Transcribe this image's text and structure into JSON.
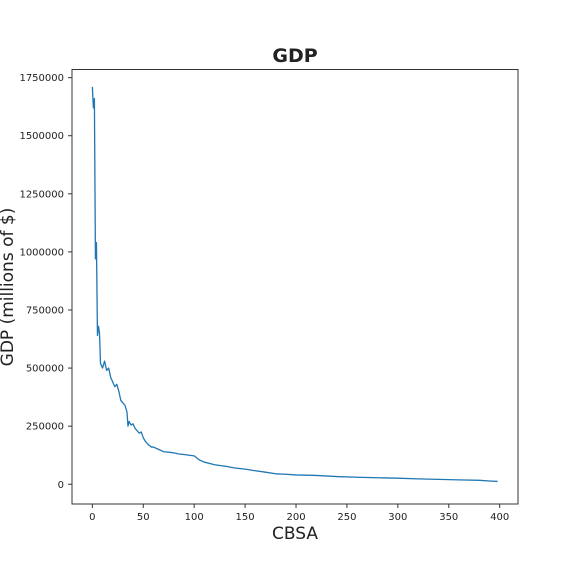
{
  "chart_data": {
    "type": "line",
    "title": "GDP",
    "xlabel": "CBSA",
    "ylabel": "GDP (millions of $)",
    "xlim": [
      -20,
      418
    ],
    "ylim": [
      -85000,
      1785000
    ],
    "xticks": [
      0,
      50,
      100,
      150,
      200,
      250,
      300,
      350,
      400
    ],
    "xtick_labels": [
      "0",
      "50",
      "100",
      "150",
      "200",
      "250",
      "300",
      "350",
      "400"
    ],
    "yticks": [
      0,
      250000,
      500000,
      750000,
      1000000,
      1250000,
      1500000,
      1750000
    ],
    "ytick_labels": [
      "0",
      "250000",
      "500000",
      "750000",
      "1000000",
      "1250000",
      "1500000",
      "1750000"
    ],
    "grid": false,
    "legend": "none",
    "series": [
      {
        "color": "#1f77b4",
        "x": [
          0,
          1,
          2,
          3,
          4,
          5,
          6,
          7,
          8,
          10,
          12,
          14,
          16,
          18,
          20,
          22,
          24,
          26,
          28,
          30,
          32,
          34,
          35,
          36,
          38,
          40,
          42,
          44,
          46,
          48,
          50,
          52,
          55,
          58,
          60,
          65,
          70,
          75,
          80,
          85,
          90,
          95,
          100,
          105,
          110,
          115,
          120,
          130,
          140,
          150,
          160,
          170,
          180,
          190,
          200,
          220,
          240,
          260,
          280,
          300,
          320,
          340,
          360,
          380,
          390,
          398
        ],
        "y": [
          1710000,
          1620000,
          1660000,
          970000,
          1040000,
          640000,
          680000,
          650000,
          520000,
          500000,
          530000,
          490000,
          500000,
          460000,
          440000,
          420000,
          430000,
          400000,
          360000,
          350000,
          340000,
          310000,
          250000,
          270000,
          255000,
          260000,
          240000,
          230000,
          220000,
          225000,
          200000,
          185000,
          170000,
          160000,
          160000,
          150000,
          140000,
          138000,
          135000,
          130000,
          128000,
          125000,
          122000,
          105000,
          95000,
          90000,
          84000,
          78000,
          70000,
          65000,
          58000,
          52000,
          45000,
          43000,
          40000,
          38000,
          33000,
          30000,
          28000,
          26000,
          23000,
          21000,
          19000,
          17000,
          14000,
          12000
        ]
      }
    ]
  }
}
